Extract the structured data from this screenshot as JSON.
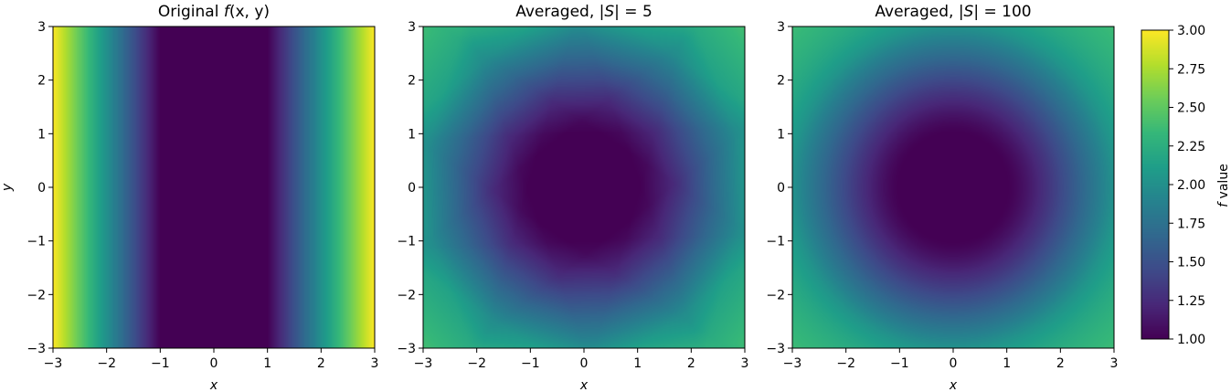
{
  "chart_data": [
    {
      "type": "heatmap",
      "title": "Original f(x, y)",
      "title_parts": {
        "prefix": "Original ",
        "func": "f",
        "args": "(x, y)"
      },
      "xlabel": "x",
      "ylabel": "y",
      "xlim": [
        -3,
        3
      ],
      "ylim": [
        -3,
        3
      ],
      "xticks": [
        -3,
        -2,
        -1,
        0,
        1,
        2,
        3
      ],
      "yticks": [
        -3,
        -2,
        -1,
        0,
        1,
        2,
        3
      ],
      "x_tick_labels": [
        "−3",
        "−2",
        "−1",
        "0",
        "1",
        "2",
        "3"
      ],
      "y_tick_labels": [
        "−3",
        "−2",
        "−1",
        "0",
        "1",
        "2",
        "3"
      ],
      "field": "f = 1 for |x| ≤ 1, rising to 3 at |x| = 3; independent of y",
      "value_range": [
        1,
        3
      ]
    },
    {
      "type": "heatmap",
      "title": "Averaged, |S| = 5",
      "title_parts": {
        "prefix": "Averaged, ",
        "set": "|S|",
        "eq": " = 5"
      },
      "xlabel": "x",
      "xlim": [
        -3,
        3
      ],
      "ylim": [
        -3,
        3
      ],
      "xticks": [
        -3,
        -2,
        -1,
        0,
        1,
        2,
        3
      ],
      "yticks": [
        -3,
        -2,
        -1,
        0,
        1,
        2,
        3
      ],
      "x_tick_labels": [
        "−3",
        "−2",
        "−1",
        "0",
        "1",
        "2",
        "3"
      ],
      "y_tick_labels": [
        "−3",
        "−2",
        "−1",
        "0",
        "1",
        "2",
        "3"
      ],
      "field": "average of f over 5 rotations; pentagonal minimum region near origin",
      "samples": 5,
      "value_range": [
        1,
        3
      ]
    },
    {
      "type": "heatmap",
      "title": "Averaged, |S| = 100",
      "title_parts": {
        "prefix": "Averaged, ",
        "set": "|S|",
        "eq": " = 100"
      },
      "xlabel": "x",
      "xlim": [
        -3,
        3
      ],
      "ylim": [
        -3,
        3
      ],
      "xticks": [
        -3,
        -2,
        -1,
        0,
        1,
        2,
        3
      ],
      "yticks": [
        -3,
        -2,
        -1,
        0,
        1,
        2,
        3
      ],
      "x_tick_labels": [
        "−3",
        "−2",
        "−1",
        "0",
        "1",
        "2",
        "3"
      ],
      "y_tick_labels": [
        "−3",
        "−2",
        "−1",
        "0",
        "1",
        "2",
        "3"
      ],
      "field": "average of f over 100 rotations; nearly radially symmetric minimum",
      "samples": 100,
      "value_range": [
        1,
        3
      ]
    }
  ],
  "colorbar": {
    "colormap": "viridis",
    "label_italic": "f",
    "label_rest": " value",
    "range": [
      1.0,
      3.0
    ],
    "ticks": [
      1.0,
      1.25,
      1.5,
      1.75,
      2.0,
      2.25,
      2.5,
      2.75,
      3.0
    ],
    "tick_labels": [
      "1.00",
      "1.25",
      "1.50",
      "1.75",
      "2.00",
      "2.25",
      "2.50",
      "2.75",
      "3.00"
    ]
  }
}
